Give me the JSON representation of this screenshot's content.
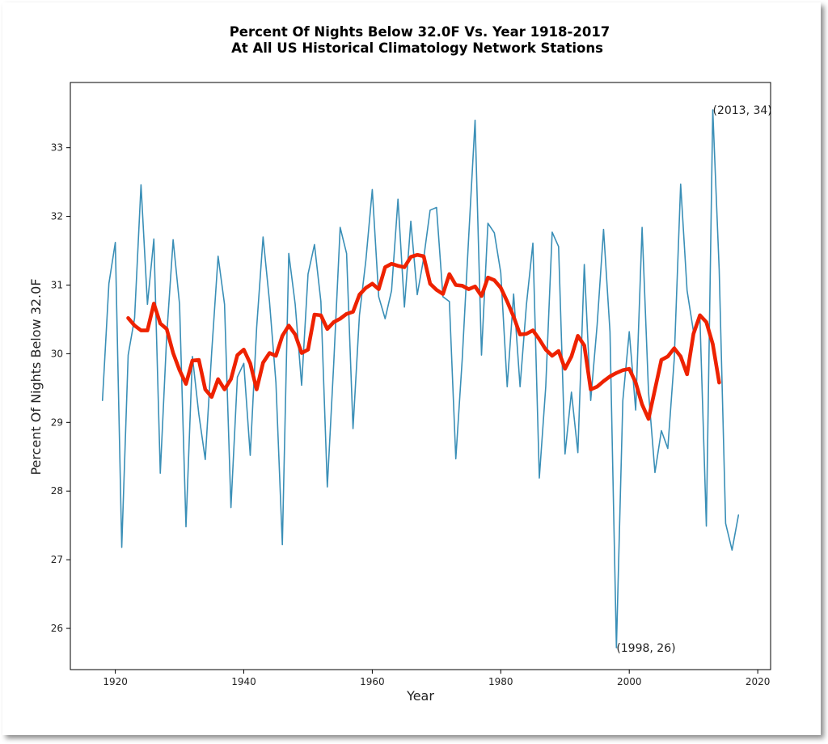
{
  "chart_data": {
    "type": "line",
    "title": "Percent Of Nights Below 32.0F Vs. Year 1918-2017",
    "subtitle": "At All US Historical Climatology Network Stations",
    "xlabel": "Year",
    "ylabel": "Percent Of Nights Below 32.0F",
    "xlim": [
      1913,
      2022
    ],
    "ylim": [
      25.4,
      33.95
    ],
    "xticks": [
      1920,
      1940,
      1960,
      1980,
      2000,
      2020
    ],
    "yticks": [
      26,
      27,
      28,
      29,
      30,
      31,
      32,
      33
    ],
    "grid": false,
    "colors": {
      "annual": "#3a8fb7",
      "smoothed": "#ee2200"
    },
    "series": [
      {
        "x_start": 1918,
        "values": [
          29.32,
          31.02,
          31.62,
          27.18,
          29.98,
          30.52,
          32.46,
          30.72,
          31.67,
          28.26,
          30.26,
          31.66,
          30.72,
          27.48,
          29.96,
          29.12,
          28.46,
          30.02,
          31.42,
          30.72,
          27.76,
          29.66,
          29.86,
          28.52,
          30.38,
          31.7,
          30.76,
          29.58,
          27.22,
          31.46,
          30.72,
          29.54,
          31.16,
          31.59,
          30.76,
          28.06,
          29.86,
          31.84,
          31.46,
          28.91,
          30.56,
          31.36,
          32.39,
          30.83,
          30.51,
          30.92,
          32.25,
          30.68,
          31.93,
          30.86,
          31.39,
          32.09,
          32.13,
          30.83,
          30.76,
          28.47,
          29.92,
          31.69,
          33.4,
          29.98,
          31.9,
          31.76,
          31.18,
          29.52,
          30.87,
          29.52,
          30.72,
          31.61,
          28.19,
          29.52,
          31.77,
          31.56,
          28.54,
          29.44,
          28.56,
          31.3,
          29.32,
          30.42,
          31.81,
          30.32,
          25.72,
          29.32,
          30.32,
          29.18,
          31.84,
          29.44,
          28.27,
          28.88,
          28.62,
          29.92,
          32.47,
          30.92,
          30.32,
          30.52,
          27.49,
          33.55,
          31.22,
          27.53,
          27.14,
          27.65
        ]
      },
      {
        "x_start": 1922,
        "values": [
          30.52,
          30.41,
          30.34,
          30.34,
          30.73,
          30.44,
          30.36,
          30.01,
          29.76,
          29.56,
          29.9,
          29.91,
          29.48,
          29.37,
          29.63,
          29.48,
          29.63,
          29.98,
          30.06,
          29.86,
          29.48,
          29.87,
          30.01,
          29.97,
          30.26,
          30.41,
          30.28,
          30.01,
          30.06,
          30.57,
          30.56,
          30.36,
          30.46,
          30.51,
          30.58,
          30.61,
          30.86,
          30.96,
          31.02,
          30.94,
          31.26,
          31.31,
          31.28,
          31.26,
          31.41,
          31.44,
          31.42,
          31.02,
          30.93,
          30.87,
          31.16,
          31.0,
          30.99,
          30.94,
          30.98,
          30.84,
          31.11,
          31.07,
          30.96,
          30.76,
          30.54,
          30.28,
          30.29,
          30.34,
          30.21,
          30.06,
          29.97,
          30.04,
          29.78,
          29.96,
          30.26,
          30.12,
          29.48,
          29.52,
          29.6,
          29.67,
          29.72,
          29.76,
          29.78,
          29.58,
          29.26,
          29.05,
          29.48,
          29.91,
          29.96,
          30.08,
          29.96,
          29.7,
          30.29,
          30.56,
          30.46,
          30.14,
          29.58
        ]
      }
    ],
    "annotations": [
      {
        "x": 2013,
        "y": 33.55,
        "text": "(2013, 34)"
      },
      {
        "x": 1998,
        "y": 25.72,
        "text": "(1998, 26)"
      }
    ]
  }
}
